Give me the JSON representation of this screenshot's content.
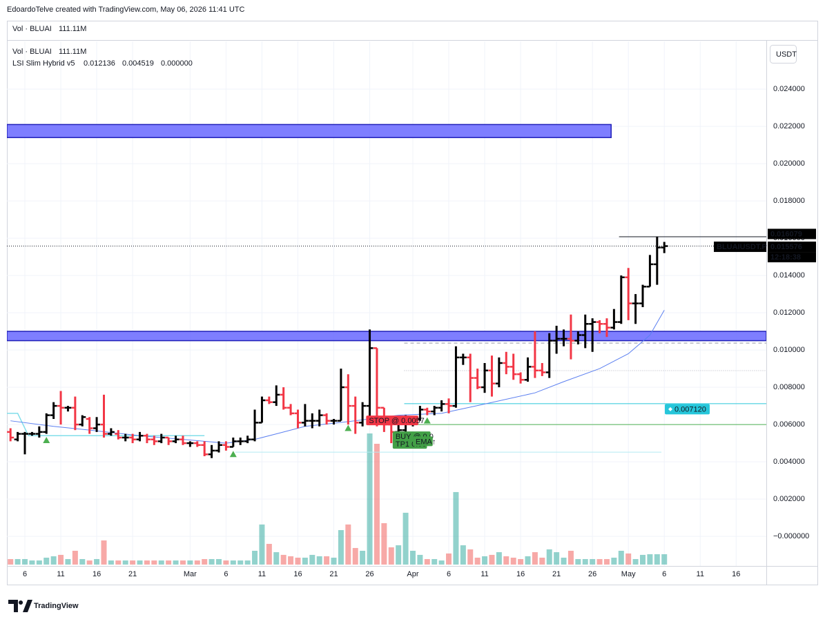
{
  "header": "EdoardoTelve created with TradingView.com, May 06, 2026 11:41 UTC",
  "footer_logo": "TradingView",
  "currency_button": "USDT",
  "chart_data": {
    "type": "ohlc",
    "symbol": "BLUAIUSDT.P",
    "countdown": "12:18:38",
    "volume_legend": {
      "name": "Vol · BLUAI",
      "value_label": "111.11M",
      "color": "#26a69a"
    },
    "indicator": {
      "name": "LSI Slim Hybrid v5",
      "values": [
        0.012136,
        0.004519,
        0
      ],
      "value_labels": [
        "0.012136",
        "0.004519",
        "0.000000"
      ],
      "colors": [
        "#2962ff",
        "#089981",
        "#43a047"
      ]
    },
    "up_color": "#000000",
    "down_color": "#f23645",
    "x": [
      4,
      5,
      6,
      7,
      8,
      9,
      10,
      11,
      12,
      13,
      14,
      15,
      16,
      17,
      18,
      19,
      20,
      21,
      22,
      23,
      24,
      25,
      26,
      27,
      28,
      29,
      30,
      31,
      32,
      33,
      34,
      35,
      36,
      37,
      38,
      39,
      40,
      41,
      42,
      43,
      44,
      45,
      46,
      47,
      48,
      49,
      50,
      51,
      52,
      53,
      54,
      55,
      56,
      57,
      58,
      59,
      60,
      61,
      62,
      63,
      64,
      65,
      66,
      67,
      68,
      69,
      70,
      71,
      72,
      73,
      74,
      75,
      76,
      77,
      78,
      79,
      80,
      81,
      82,
      83,
      84,
      85,
      86,
      87,
      88,
      89,
      90,
      91,
      92,
      93,
      94,
      95
    ],
    "open": [
      0.0056,
      0.0052,
      0.0055,
      0.0055,
      0.0055,
      0.0056,
      0.0065,
      0.007,
      0.0069,
      0.0069,
      0.006,
      0.0063,
      0.0058,
      0.006,
      0.0055,
      0.0055,
      0.0053,
      0.0053,
      0.0052,
      0.0054,
      0.0052,
      0.0051,
      0.0053,
      0.0051,
      0.0052,
      0.005,
      0.005,
      0.0049,
      0.0044,
      0.0046,
      0.0049,
      0.0048,
      0.0051,
      0.0051,
      0.0052,
      0.0061,
      0.0073,
      0.0072,
      0.0076,
      0.0069,
      0.0066,
      0.0061,
      0.0062,
      0.0062,
      0.0065,
      0.0062,
      0.0062,
      0.008,
      0.007,
      0.0061,
      0.007,
      0.0101,
      0.0069,
      0.006,
      0.0056,
      0.0057,
      0.0063,
      0.0063,
      0.0068,
      0.0067,
      0.0069,
      0.0071,
      0.007,
      0.0096,
      0.0096,
      0.0085,
      0.008,
      0.0089,
      0.0082,
      0.0093,
      0.0091,
      0.0087,
      0.0084,
      0.0091,
      0.0089,
      0.0088,
      0.0105,
      0.0106,
      0.0106,
      0.0105,
      0.0108,
      0.0114,
      0.0115,
      0.0114,
      0.0112,
      0.0115,
      0.0139,
      0.0125,
      0.0125,
      0.0134,
      0.0146,
      0.0155
    ],
    "high": [
      0.0058,
      0.0056,
      0.0056,
      0.0056,
      0.0059,
      0.0066,
      0.0072,
      0.0078,
      0.007,
      0.0075,
      0.0065,
      0.0064,
      0.0064,
      0.0076,
      0.0058,
      0.0057,
      0.0055,
      0.0055,
      0.0056,
      0.0055,
      0.0054,
      0.0055,
      0.0053,
      0.0054,
      0.0054,
      0.0051,
      0.0051,
      0.0051,
      0.0049,
      0.0051,
      0.0051,
      0.0053,
      0.0053,
      0.0054,
      0.0068,
      0.0075,
      0.0075,
      0.0081,
      0.008,
      0.0071,
      0.0068,
      0.0071,
      0.0066,
      0.0068,
      0.0066,
      0.0063,
      0.009,
      0.0087,
      0.0075,
      0.0072,
      0.0111,
      0.0101,
      0.0069,
      0.0063,
      0.006,
      0.0065,
      0.0064,
      0.007,
      0.0069,
      0.007,
      0.0073,
      0.0074,
      0.0102,
      0.0098,
      0.0098,
      0.009,
      0.0093,
      0.0097,
      0.0096,
      0.0099,
      0.0098,
      0.0088,
      0.0096,
      0.011,
      0.0093,
      0.0109,
      0.0113,
      0.0111,
      0.0119,
      0.011,
      0.0119,
      0.0117,
      0.0116,
      0.0117,
      0.0122,
      0.014,
      0.0144,
      0.013,
      0.0135,
      0.0151,
      0.016079,
      0.0158
    ],
    "low": [
      0.0051,
      0.0051,
      0.0044,
      0.0054,
      0.0053,
      0.0055,
      0.0063,
      0.006,
      0.0067,
      0.0057,
      0.0059,
      0.0055,
      0.0056,
      0.0053,
      0.0054,
      0.0052,
      0.0051,
      0.005,
      0.0051,
      0.005,
      0.0049,
      0.005,
      0.0049,
      0.005,
      0.0049,
      0.0048,
      0.0048,
      0.0043,
      0.0042,
      0.0045,
      0.0046,
      0.0048,
      0.0049,
      0.005,
      0.0051,
      0.0061,
      0.0071,
      0.007,
      0.0068,
      0.0065,
      0.0058,
      0.0059,
      0.0058,
      0.0059,
      0.006,
      0.006,
      0.0062,
      0.006,
      0.0055,
      0.0059,
      0.006,
      0.0059,
      0.0056,
      0.005,
      0.005,
      0.0055,
      0.0059,
      0.0062,
      0.0065,
      0.0065,
      0.0067,
      0.0066,
      0.0069,
      0.0092,
      0.0072,
      0.0079,
      0.0077,
      0.0075,
      0.008,
      0.0087,
      0.0084,
      0.0082,
      0.0083,
      0.0085,
      0.0086,
      0.0085,
      0.0098,
      0.0102,
      0.0095,
      0.0103,
      0.0101,
      0.0099,
      0.0109,
      0.0107,
      0.0111,
      0.0114,
      0.0116,
      0.0114,
      0.0123,
      0.0134,
      0.0135,
      0.0152
    ],
    "close": [
      0.0053,
      0.0055,
      0.0055,
      0.0055,
      0.0056,
      0.0065,
      0.007,
      0.0069,
      0.0069,
      0.006,
      0.0064,
      0.0058,
      0.006,
      0.0055,
      0.0056,
      0.0053,
      0.0053,
      0.0052,
      0.0054,
      0.0052,
      0.0051,
      0.0053,
      0.0051,
      0.0052,
      0.005,
      0.005,
      0.0049,
      0.0044,
      0.0046,
      0.0049,
      0.0048,
      0.0051,
      0.0051,
      0.0052,
      0.0061,
      0.0073,
      0.0072,
      0.0076,
      0.0069,
      0.0066,
      0.0061,
      0.0062,
      0.0062,
      0.0065,
      0.0062,
      0.0062,
      0.008,
      0.007,
      0.0061,
      0.007,
      0.0101,
      0.0069,
      0.006,
      0.0056,
      0.0057,
      0.0063,
      0.0063,
      0.0068,
      0.0067,
      0.0069,
      0.0071,
      0.007,
      0.0096,
      0.0096,
      0.0085,
      0.008,
      0.0089,
      0.0082,
      0.0093,
      0.0091,
      0.0087,
      0.0084,
      0.0091,
      0.0089,
      0.0088,
      0.0105,
      0.0106,
      0.0106,
      0.0105,
      0.0108,
      0.0114,
      0.0115,
      0.0114,
      0.0112,
      0.0115,
      0.0139,
      0.0125,
      0.0125,
      0.0134,
      0.0146,
      0.0155,
      0.015576
    ],
    "volume": {
      "up_color": "rgba(38,166,154,0.5)",
      "down_color": "rgba(239,83,80,0.5)",
      "values": [
        59,
        59,
        59,
        44,
        44,
        74,
        89,
        104,
        59,
        148,
        59,
        44,
        59,
        259,
        44,
        44,
        44,
        44,
        44,
        44,
        44,
        44,
        44,
        44,
        44,
        44,
        44,
        59,
        59,
        59,
        44,
        44,
        44,
        44,
        148,
        430,
        222,
        133,
        104,
        89,
        74,
        74,
        104,
        89,
        89,
        74,
        370,
        430,
        178,
        148,
        1407,
        1296,
        444,
        185,
        207,
        556,
        148,
        104,
        59,
        59,
        44,
        119,
        778,
        207,
        163,
        74,
        89,
        104,
        133,
        89,
        74,
        59,
        89,
        133,
        74,
        163,
        133,
        74,
        148,
        59,
        59,
        59,
        59,
        59,
        74,
        148,
        119,
        59,
        104,
        111,
        111,
        111.11
      ]
    },
    "ema": {
      "color": "#5b7ff0",
      "x": [
        4,
        10,
        15,
        22,
        28,
        34,
        38,
        41,
        45,
        52,
        58,
        64,
        70,
        77,
        81,
        86,
        90,
        93,
        95
      ],
      "values": [
        0.0062,
        0.0059,
        0.0057,
        0.0054,
        0.0052,
        0.005,
        0.0052,
        0.0055,
        0.0059,
        0.0062,
        0.0065,
        0.0066,
        0.0071,
        0.0077,
        0.0083,
        0.009,
        0.0098,
        0.0108,
        0.012136
      ]
    },
    "trail": {
      "color": "#80deea",
      "x": [
        3.5,
        5,
        6.5,
        31
      ],
      "values": [
        0.0066,
        0.0066,
        0.0054,
        0.0054
      ]
    },
    "zones": [
      {
        "from": 0.0214,
        "to": 0.0221,
        "x": [
          3.5,
          87.6
        ],
        "color": "#7070ff",
        "border": "#1f1fb8"
      },
      {
        "from": 0.0105,
        "to": 0.011,
        "x": [
          3.5,
          109.2
        ],
        "color": "#7070ff",
        "border": "#1f1fb8"
      }
    ],
    "levels": [
      {
        "value": 0.016079,
        "x": [
          88.7,
          109.2
        ],
        "color": "#131722",
        "style": "solid"
      },
      {
        "value": 0.015576,
        "x": [
          3.5,
          109.2
        ],
        "color": "#131722",
        "style": "dotted"
      },
      {
        "value": 0.01037,
        "x": [
          58.8,
          109.2
        ],
        "color": "#9598a1",
        "style": "dashed"
      },
      {
        "value": 0.00889,
        "x": [
          58.8,
          109.2
        ],
        "color": "#b2b5be",
        "style": "dotted"
      },
      {
        "value": 0.00712,
        "label": "0.007120",
        "x": [
          58.8,
          109.2
        ],
        "color": "#26c6da",
        "style": "solid"
      },
      {
        "value": 0.006,
        "x": [
          59.8,
          109.2
        ],
        "color": "#4caf50",
        "style": "solid"
      },
      {
        "value": 0.004519,
        "x": [
          35.3,
          94.6
        ],
        "color": "#b2ebf2",
        "style": "solid"
      }
    ],
    "signals": {
      "color": "#4caf50",
      "x": [
        9,
        35,
        51,
        62
      ],
      "values": [
        0.00515,
        0.0044,
        0.0058,
        0.0062
      ]
    },
    "trade_labels": [
      {
        "text": "STOP @ 0.0057",
        "x": 53.5,
        "value": 0.00622,
        "color": "#f23645"
      },
      {
        "text": "BUY @ 0.0",
        "x": 57.2,
        "value": 0.00537,
        "color": "#43a047"
      },
      {
        "text": "TP1 0.00",
        "x": 57.2,
        "value": 0.00496,
        "color": "#43a047"
      },
      {
        "text": "EMA↑",
        "x": 60.0,
        "value": 0.0051,
        "color": "#43a047"
      }
    ],
    "xlim": [
      3.5,
      109.2
    ],
    "xticks": [
      6,
      11,
      16,
      21,
      {
        "value": 29,
        "label": "Mar"
      },
      {
        "value": 34,
        "label": "6"
      },
      {
        "value": 39,
        "label": "11"
      },
      {
        "value": 44,
        "label": "16"
      },
      {
        "value": 49,
        "label": "21"
      },
      {
        "value": 54,
        "label": "26"
      },
      {
        "value": 60,
        "label": "Apr"
      },
      {
        "value": 65,
        "label": "6"
      },
      {
        "value": 70,
        "label": "11"
      },
      {
        "value": 75,
        "label": "16"
      },
      {
        "value": 80,
        "label": "21"
      },
      {
        "value": 85,
        "label": "26"
      },
      {
        "value": 90,
        "label": "May"
      },
      {
        "value": 95,
        "label": "6"
      },
      {
        "value": 100,
        "label": "11"
      },
      {
        "value": 105,
        "label": "16"
      }
    ],
    "ylim": [
      -0.00159,
      0.02656
    ],
    "yticks": [
      {
        "value": 0,
        "label": "−0.000000"
      },
      {
        "value": 0.002,
        "label": "0.002000"
      },
      {
        "value": 0.004,
        "label": "0.004000"
      },
      {
        "value": 0.006,
        "label": "0.006000"
      },
      {
        "value": 0.008,
        "label": "0.008000"
      },
      {
        "value": 0.01,
        "label": "0.010000"
      },
      {
        "value": 0.012,
        "label": "0.012000"
      },
      {
        "value": 0.014,
        "label": "0.014000"
      },
      {
        "value": 0.016,
        "label": "0.016000"
      },
      {
        "value": 0.018,
        "label": "0.018000"
      },
      {
        "value": 0.02,
        "label": "0.020000"
      },
      {
        "value": 0.022,
        "label": "0.022000"
      },
      {
        "value": 0.024,
        "label": "0.024000"
      }
    ],
    "grid": true
  }
}
